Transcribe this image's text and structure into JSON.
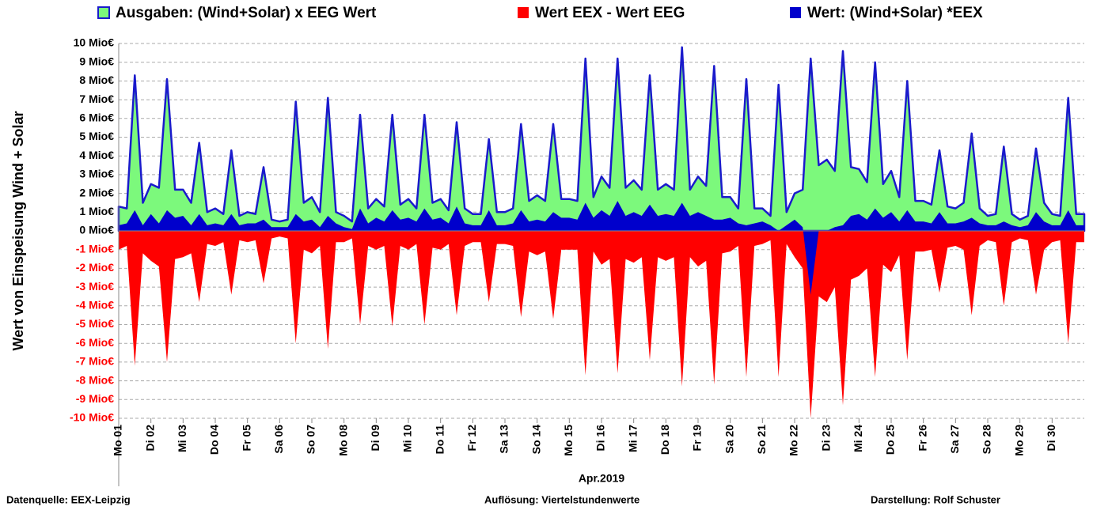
{
  "chart_data": {
    "type": "area",
    "y_label": "Wert von Einspeisung Wind + Solar",
    "x_label": "Apr.2019",
    "xlim": [
      1,
      31
    ],
    "xticks": [
      {
        "value": 1,
        "label": "Mo 01"
      },
      {
        "value": 2,
        "label": "Di 02"
      },
      {
        "value": 3,
        "label": "Mi 03"
      },
      {
        "value": 4,
        "label": "Do 04"
      },
      {
        "value": 5,
        "label": "Fr 05"
      },
      {
        "value": 6,
        "label": "Sa 06"
      },
      {
        "value": 7,
        "label": "So 07"
      },
      {
        "value": 8,
        "label": "Mo 08"
      },
      {
        "value": 9,
        "label": "Di 09"
      },
      {
        "value": 10,
        "label": "Mi 10"
      },
      {
        "value": 11,
        "label": "Do 11"
      },
      {
        "value": 12,
        "label": "Fr 12"
      },
      {
        "value": 13,
        "label": "Sa 13"
      },
      {
        "value": 14,
        "label": "So 14"
      },
      {
        "value": 15,
        "label": "Mo 15"
      },
      {
        "value": 16,
        "label": "Di 16"
      },
      {
        "value": 17,
        "label": "Mi 17"
      },
      {
        "value": 18,
        "label": "Do 18"
      },
      {
        "value": 19,
        "label": "Fr 19"
      },
      {
        "value": 20,
        "label": "Sa 20"
      },
      {
        "value": 21,
        "label": "So 21"
      },
      {
        "value": 22,
        "label": "Mo 22"
      },
      {
        "value": 23,
        "label": "Di 23"
      },
      {
        "value": 24,
        "label": "Mi 24"
      },
      {
        "value": 25,
        "label": "Do 25"
      },
      {
        "value": 26,
        "label": "Fr 26"
      },
      {
        "value": 27,
        "label": "Sa 27"
      },
      {
        "value": 28,
        "label": "So 28"
      },
      {
        "value": 29,
        "label": "Mo 29"
      },
      {
        "value": 30,
        "label": "Di 30"
      }
    ],
    "ylim": [
      -10,
      10
    ],
    "yticks": [
      {
        "value": 10,
        "label": "10 Mio€"
      },
      {
        "value": 9,
        "label": "9 Mio€"
      },
      {
        "value": 8,
        "label": "8 Mio€"
      },
      {
        "value": 7,
        "label": "7 Mio€"
      },
      {
        "value": 6,
        "label": "6 Mio€"
      },
      {
        "value": 5,
        "label": "5 Mio€"
      },
      {
        "value": 4,
        "label": "4 Mio€"
      },
      {
        "value": 3,
        "label": "3 Mio€"
      },
      {
        "value": 2,
        "label": "2 Mio€"
      },
      {
        "value": 1,
        "label": "1 Mio€"
      },
      {
        "value": 0,
        "label": "0 Mio€"
      },
      {
        "value": -1,
        "label": "-1 Mio€"
      },
      {
        "value": -2,
        "label": "-2 Mio€"
      },
      {
        "value": -3,
        "label": "-3 Mio€"
      },
      {
        "value": -4,
        "label": "-4 Mio€"
      },
      {
        "value": -5,
        "label": "-5 Mio€"
      },
      {
        "value": -6,
        "label": "-6 Mio€"
      },
      {
        "value": -7,
        "label": "-7 Mio€"
      },
      {
        "value": -8,
        "label": "-8 Mio€"
      },
      {
        "value": -9,
        "label": "-9 Mio€"
      },
      {
        "value": -10,
        "label": "-10 Mio€"
      }
    ],
    "negative_tick_color": "#ff0000",
    "grid": true,
    "x": [
      1,
      1.25,
      1.5,
      1.75,
      2,
      2.25,
      2.5,
      2.75,
      3,
      3.25,
      3.5,
      3.75,
      4,
      4.25,
      4.5,
      4.75,
      5,
      5.25,
      5.5,
      5.75,
      6,
      6.25,
      6.5,
      6.75,
      7,
      7.25,
      7.5,
      7.75,
      8,
      8.25,
      8.5,
      8.75,
      9,
      9.25,
      9.5,
      9.75,
      10,
      10.25,
      10.5,
      10.75,
      11,
      11.25,
      11.5,
      11.75,
      12,
      12.25,
      12.5,
      12.75,
      13,
      13.25,
      13.5,
      13.75,
      14,
      14.25,
      14.5,
      14.75,
      15,
      15.25,
      15.5,
      15.75,
      16,
      16.25,
      16.5,
      16.75,
      17,
      17.25,
      17.5,
      17.75,
      18,
      18.25,
      18.5,
      18.75,
      19,
      19.25,
      19.5,
      19.75,
      20,
      20.25,
      20.5,
      20.75,
      21,
      21.25,
      21.5,
      21.75,
      22,
      22.25,
      22.5,
      22.75,
      23,
      23.25,
      23.5,
      23.75,
      24,
      24.25,
      24.5,
      24.75,
      25,
      25.25,
      25.5,
      25.75,
      26,
      26.25,
      26.5,
      26.75,
      27,
      27.25,
      27.5,
      27.75,
      28,
      28.25,
      28.5,
      28.75,
      29,
      29.25,
      29.5,
      29.75,
      30,
      30.25,
      30.5,
      30.75,
      31
    ],
    "series": [
      {
        "name": "Ausgaben: (Wind+Solar) x EEG Wert",
        "color": "#7cf97c",
        "edgecolor": "#1a1acc",
        "values": [
          1.3,
          1.2,
          8.3,
          1.5,
          2.5,
          2.3,
          8.1,
          2.2,
          2.2,
          1.5,
          4.7,
          1.0,
          1.2,
          0.9,
          4.3,
          0.8,
          1.0,
          0.9,
          3.4,
          0.6,
          0.5,
          0.6,
          6.9,
          1.5,
          1.8,
          1.0,
          7.1,
          1.0,
          0.8,
          0.5,
          6.2,
          1.2,
          1.7,
          1.3,
          6.2,
          1.4,
          1.7,
          1.2,
          6.2,
          1.5,
          1.7,
          1.1,
          5.8,
          1.2,
          0.9,
          0.9,
          4.9,
          1.0,
          1.0,
          1.2,
          5.7,
          1.6,
          1.9,
          1.6,
          5.7,
          1.7,
          1.7,
          1.6,
          9.2,
          1.8,
          2.9,
          2.3,
          9.2,
          2.3,
          2.7,
          2.2,
          8.3,
          2.2,
          2.5,
          2.2,
          9.8,
          2.2,
          2.9,
          2.4,
          8.8,
          1.8,
          1.8,
          1.2,
          8.1,
          1.2,
          1.2,
          0.8,
          7.8,
          1.0,
          2.0,
          2.2,
          9.2,
          3.5,
          3.8,
          3.2,
          9.6,
          3.4,
          3.3,
          2.6,
          9.0,
          2.5,
          3.2,
          1.8,
          8.0,
          1.6,
          1.6,
          1.4,
          4.3,
          1.3,
          1.2,
          1.5,
          5.2,
          1.2,
          0.8,
          0.9,
          4.5,
          0.9,
          0.6,
          0.8,
          4.4,
          1.5,
          0.9,
          0.8,
          7.1,
          0.9,
          0.9
        ]
      },
      {
        "name": "Wert EEX - Wert EEG",
        "color": "#ff0000",
        "values": [
          -1.0,
          -0.8,
          -7.2,
          -1.2,
          -1.6,
          -1.9,
          -7.0,
          -1.5,
          -1.4,
          -1.2,
          -3.8,
          -0.7,
          -0.8,
          -0.6,
          -3.4,
          -0.5,
          -0.6,
          -0.5,
          -2.8,
          -0.4,
          -0.3,
          -0.4,
          -6.0,
          -1.0,
          -1.2,
          -0.8,
          -6.3,
          -0.6,
          -0.6,
          -0.4,
          -5.0,
          -0.8,
          -1.0,
          -0.8,
          -5.1,
          -0.8,
          -1.0,
          -0.7,
          -5.0,
          -0.9,
          -1.0,
          -0.7,
          -4.5,
          -0.8,
          -0.6,
          -0.6,
          -3.8,
          -0.7,
          -0.7,
          -0.8,
          -4.6,
          -1.1,
          -1.3,
          -1.1,
          -4.7,
          -1.0,
          -1.0,
          -1.0,
          -7.7,
          -1.1,
          -1.8,
          -1.5,
          -7.6,
          -1.5,
          -1.7,
          -1.4,
          -6.9,
          -1.4,
          -1.6,
          -1.4,
          -8.3,
          -1.4,
          -1.9,
          -1.6,
          -8.2,
          -1.2,
          -1.1,
          -0.8,
          -7.8,
          -0.8,
          -0.7,
          -0.5,
          -7.8,
          -0.7,
          -1.4,
          -2.0,
          -10,
          -3.5,
          -3.8,
          -3.0,
          -9.3,
          -2.6,
          -2.4,
          -2.0,
          -7.8,
          -1.8,
          -2.2,
          -1.3,
          -6.9,
          -1.1,
          -1.1,
          -1.0,
          -3.3,
          -0.9,
          -0.8,
          -1.0,
          -4.5,
          -0.8,
          -0.5,
          -0.6,
          -4.0,
          -0.6,
          -0.4,
          -0.5,
          -3.4,
          -1.0,
          -0.6,
          -0.5,
          -6.0,
          -0.6,
          -0.6
        ]
      },
      {
        "name": "Wert: (Wind+Solar) *EEX",
        "color": "#0000cc",
        "values": [
          0.3,
          0.4,
          1.1,
          0.3,
          0.9,
          0.4,
          1.1,
          0.7,
          0.8,
          0.3,
          0.9,
          0.3,
          0.4,
          0.3,
          0.9,
          0.3,
          0.4,
          0.4,
          0.6,
          0.2,
          0.2,
          0.2,
          0.9,
          0.5,
          0.6,
          0.2,
          0.8,
          0.4,
          0.2,
          0.1,
          1.2,
          0.4,
          0.7,
          0.5,
          1.1,
          0.6,
          0.7,
          0.5,
          1.2,
          0.6,
          0.7,
          0.4,
          1.3,
          0.4,
          0.3,
          0.3,
          1.1,
          0.3,
          0.3,
          0.4,
          1.1,
          0.5,
          0.6,
          0.5,
          1.0,
          0.7,
          0.7,
          0.6,
          1.5,
          0.7,
          1.1,
          0.8,
          1.6,
          0.8,
          1.0,
          0.8,
          1.4,
          0.8,
          0.9,
          0.8,
          1.5,
          0.8,
          1.0,
          0.8,
          0.6,
          0.6,
          0.7,
          0.4,
          0.3,
          0.4,
          0.5,
          0.3,
          0.0,
          0.3,
          0.6,
          0.2,
          -3.4,
          0.0,
          0.0,
          0.2,
          0.3,
          0.8,
          0.9,
          0.6,
          1.2,
          0.7,
          1.0,
          0.5,
          1.1,
          0.5,
          0.5,
          0.4,
          1.0,
          0.4,
          0.4,
          0.5,
          0.7,
          0.4,
          0.3,
          0.3,
          0.5,
          0.3,
          0.2,
          0.3,
          1.0,
          0.5,
          0.3,
          0.3,
          1.1,
          0.3,
          0.3
        ]
      }
    ]
  },
  "footer": {
    "source": "Datenquelle:  EEX-Leipzig",
    "resolution": "Auflösung: Viertelstundenwerte",
    "author": "Darstellung: Rolf Schuster"
  }
}
